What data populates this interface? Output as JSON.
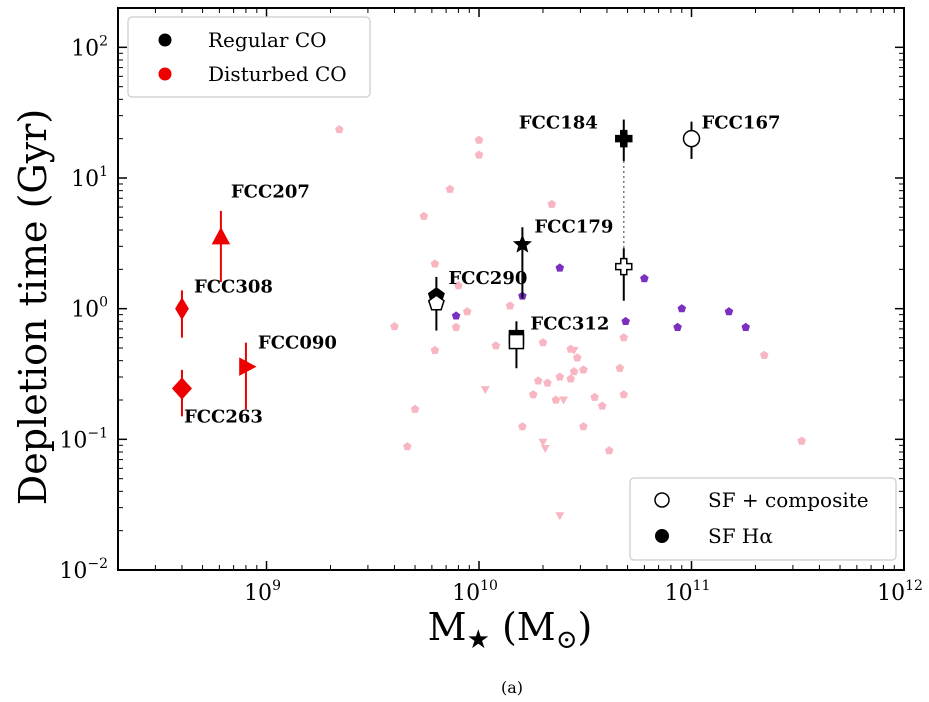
{
  "chart_data": {
    "type": "scatter",
    "xlabel_main": "M",
    "xlabel_sub": "★",
    "xlabel_unit_open": " (M",
    "xlabel_unit_sub": "⊙",
    "xlabel_unit_close": ")",
    "ylabel": "Depletion time (Gyr)",
    "caption": "(a)",
    "x_scale": "log",
    "y_scale": "log",
    "xlim": [
      200000000.0,
      1000000000000.0
    ],
    "ylim": [
      0.01,
      200
    ],
    "x_ticks": [
      {
        "value": 1000000000.0,
        "base": "10",
        "exp": "9"
      },
      {
        "value": 10000000000.0,
        "base": "10",
        "exp": "10"
      },
      {
        "value": 100000000000.0,
        "base": "10",
        "exp": "11"
      },
      {
        "value": 1000000000000.0,
        "base": "10",
        "exp": "12"
      }
    ],
    "y_ticks": [
      {
        "value": 0.01,
        "base": "10",
        "exp": "−2"
      },
      {
        "value": 0.1,
        "base": "10",
        "exp": "−1"
      },
      {
        "value": 1,
        "base": "10",
        "exp": "0"
      },
      {
        "value": 10,
        "base": "10",
        "exp": "1"
      },
      {
        "value": 100,
        "base": "10",
        "exp": "2"
      }
    ],
    "colors": {
      "regular": "#000000",
      "disturbed": "#ee0000",
      "comparison_pink": "#f7b6c2",
      "comparison_purple": "#7b2fbe"
    },
    "legend_top_left": [
      {
        "label": "Regular CO",
        "color": "#000000"
      },
      {
        "label": "Disturbed CO",
        "color": "#ee0000"
      }
    ],
    "legend_bottom_right": [
      {
        "label": "SF + composite",
        "style": "open"
      },
      {
        "label": "SF Hα",
        "style": "filled"
      }
    ],
    "comparison_points": [
      {
        "x": 2200000000.0,
        "y": 23.5,
        "c": "pink"
      },
      {
        "x": 10000000000.0,
        "y": 19.5,
        "c": "pink"
      },
      {
        "x": 10000000000.0,
        "y": 15.0,
        "c": "pink"
      },
      {
        "x": 7300000000.0,
        "y": 8.2,
        "c": "pink"
      },
      {
        "x": 22000000000.0,
        "y": 6.3,
        "c": "pink"
      },
      {
        "x": 5500000000.0,
        "y": 5.1,
        "c": "pink"
      },
      {
        "x": 6200000000.0,
        "y": 2.2,
        "c": "pink"
      },
      {
        "x": 8000000000.0,
        "y": 1.5,
        "c": "pink"
      },
      {
        "x": 14000000000.0,
        "y": 1.05,
        "c": "pink"
      },
      {
        "x": 8800000000.0,
        "y": 0.95,
        "c": "pink"
      },
      {
        "x": 4000000000.0,
        "y": 0.73,
        "c": "pink"
      },
      {
        "x": 7800000000.0,
        "y": 0.72,
        "c": "pink"
      },
      {
        "x": 6200000000.0,
        "y": 0.48,
        "c": "pink"
      },
      {
        "x": 12000000000.0,
        "y": 0.52,
        "c": "pink"
      },
      {
        "x": 20000000000.0,
        "y": 0.55,
        "c": "pink"
      },
      {
        "x": 27000000000.0,
        "y": 0.49,
        "c": "pink"
      },
      {
        "x": 29000000000.0,
        "y": 0.42,
        "c": "pink"
      },
      {
        "x": 48000000000.0,
        "y": 0.6,
        "c": "pink"
      },
      {
        "x": 220000000000.0,
        "y": 0.44,
        "c": "pink"
      },
      {
        "x": 24000000000.0,
        "y": 0.3,
        "c": "pink"
      },
      {
        "x": 28000000000.0,
        "y": 0.33,
        "c": "pink"
      },
      {
        "x": 31000000000.0,
        "y": 0.34,
        "c": "pink"
      },
      {
        "x": 19000000000.0,
        "y": 0.28,
        "c": "pink"
      },
      {
        "x": 21000000000.0,
        "y": 0.27,
        "c": "pink"
      },
      {
        "x": 18000000000.0,
        "y": 0.22,
        "c": "pink"
      },
      {
        "x": 23000000000.0,
        "y": 0.2,
        "c": "pink"
      },
      {
        "x": 27000000000.0,
        "y": 0.29,
        "c": "pink"
      },
      {
        "x": 35000000000.0,
        "y": 0.21,
        "c": "pink"
      },
      {
        "x": 38000000000.0,
        "y": 0.18,
        "c": "pink"
      },
      {
        "x": 48000000000.0,
        "y": 0.22,
        "c": "pink"
      },
      {
        "x": 5000000000.0,
        "y": 0.17,
        "c": "pink"
      },
      {
        "x": 16000000000.0,
        "y": 0.125,
        "c": "pink"
      },
      {
        "x": 31000000000.0,
        "y": 0.125,
        "c": "pink"
      },
      {
        "x": 4600000000.0,
        "y": 0.088,
        "c": "pink"
      },
      {
        "x": 41000000000.0,
        "y": 0.082,
        "c": "pink"
      },
      {
        "x": 330000000000.0,
        "y": 0.097,
        "c": "pink"
      },
      {
        "x": 46000000000.0,
        "y": 0.35,
        "c": "pink"
      },
      {
        "x": 16000000000.0,
        "y": 1.25,
        "c": "purple"
      },
      {
        "x": 24000000000.0,
        "y": 2.05,
        "c": "purple"
      },
      {
        "x": 60000000000.0,
        "y": 1.7,
        "c": "purple"
      },
      {
        "x": 7800000000.0,
        "y": 0.88,
        "c": "purple"
      },
      {
        "x": 49000000000.0,
        "y": 0.8,
        "c": "purple"
      },
      {
        "x": 86000000000.0,
        "y": 0.72,
        "c": "purple"
      },
      {
        "x": 90000000000.0,
        "y": 1.0,
        "c": "purple"
      },
      {
        "x": 150000000000.0,
        "y": 0.95,
        "c": "purple"
      },
      {
        "x": 180000000000.0,
        "y": 0.72,
        "c": "purple"
      }
    ],
    "upper_limits": [
      {
        "x": 10700000000.0,
        "y": 0.24
      },
      {
        "x": 20000000000.0,
        "y": 0.095
      },
      {
        "x": 20500000000.0,
        "y": 0.085
      },
      {
        "x": 25000000000.0,
        "y": 0.2
      },
      {
        "x": 28000000000.0,
        "y": 0.48
      },
      {
        "x": 24000000000.0,
        "y": 0.026
      }
    ],
    "galaxies": [
      {
        "name": "FCC184",
        "x": 48000000000.0,
        "y": 20.0,
        "ylo": 13.5,
        "yhi": 28.0,
        "marker": "plus",
        "filled": true,
        "color": "#000000",
        "lx": -105,
        "ly": -10
      },
      {
        "name": "FCC184_open",
        "x": 48000000000.0,
        "y": 2.1,
        "ylo": 1.15,
        "yhi": 2.9,
        "marker": "plus",
        "filled": false,
        "color": "#000000"
      },
      {
        "name": "FCC167",
        "x": 100000000000.0,
        "y": 20.0,
        "ylo": 14.0,
        "yhi": 27.0,
        "marker": "circle",
        "filled": false,
        "color": "#000000",
        "lx": 10,
        "ly": -10
      },
      {
        "name": "FCC179",
        "x": 16000000000.0,
        "y": 3.1,
        "ylo": 1.2,
        "yhi": 4.2,
        "marker": "star",
        "filled": true,
        "color": "#000000",
        "lx": 12,
        "ly": -12
      },
      {
        "name": "FCC290",
        "x": 6300000000.0,
        "y": 1.25,
        "ylo": 0.68,
        "yhi": 1.75,
        "marker": "pentagon",
        "filled": true,
        "color": "#000000",
        "lx": 12,
        "ly": -12
      },
      {
        "name": "FCC290_open",
        "x": 6300000000.0,
        "y": 1.1,
        "marker": "pentagon",
        "filled": false,
        "color": "#000000"
      },
      {
        "name": "FCC312",
        "x": 15000000000.0,
        "y": 0.6,
        "ylo": 0.35,
        "yhi": 0.8,
        "marker": "square",
        "filled": true,
        "color": "#000000",
        "lx": 14,
        "ly": -8
      },
      {
        "name": "FCC312_open",
        "x": 15000000000.0,
        "y": 0.56,
        "marker": "square",
        "filled": false,
        "color": "#000000"
      },
      {
        "name": "FCC207",
        "x": 610000000.0,
        "y": 3.5,
        "ylo": 1.6,
        "yhi": 5.6,
        "marker": "triangle-up",
        "filled": true,
        "color": "#ee0000",
        "lx": 10,
        "ly": -40
      },
      {
        "name": "FCC308",
        "x": 400000000.0,
        "y": 1.0,
        "ylo": 0.6,
        "yhi": 1.38,
        "marker": "diamond-thin",
        "filled": true,
        "color": "#ee0000",
        "lx": 12,
        "ly": -16
      },
      {
        "name": "FCC090",
        "x": 800000000.0,
        "y": 0.36,
        "ylo": 0.17,
        "yhi": 0.55,
        "marker": "triangle-right",
        "filled": true,
        "color": "#ee0000",
        "lx": 12,
        "ly": -18
      },
      {
        "name": "FCC263",
        "x": 400000000.0,
        "y": 0.245,
        "ylo": 0.15,
        "yhi": 0.34,
        "marker": "diamond",
        "filled": true,
        "color": "#ee0000",
        "lx": 2,
        "ly": 34
      }
    ],
    "dotted_connector": {
      "x": 48000000000.0,
      "y1": 13.5,
      "y2": 2.9
    }
  }
}
